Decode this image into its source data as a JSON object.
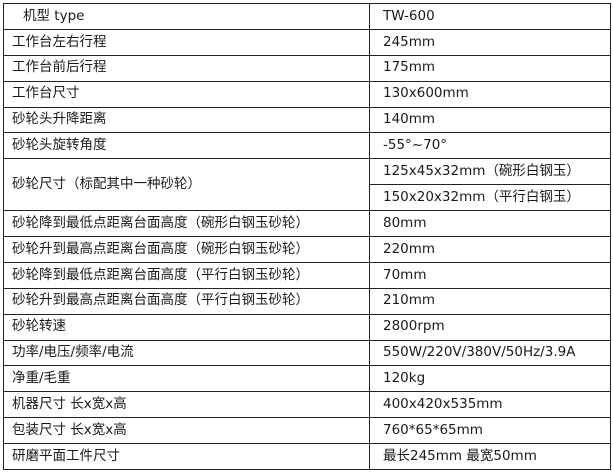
{
  "header": {
    "label": "机型 type",
    "value": "TW-600"
  },
  "rows": [
    {
      "label": "工作台左右行程",
      "value": "245mm"
    },
    {
      "label": "工作台前后行程",
      "value": "175mm"
    },
    {
      "label": "工作台尺寸",
      "value": "130x600mm"
    },
    {
      "label": "砂轮头升降距离",
      "value": "140mm"
    },
    {
      "label": "砂轮头旋转角度",
      "value": "-55°~70°"
    }
  ],
  "wheel_size": {
    "label": "砂轮尺寸（标配其中一种砂轮）",
    "values": [
      "125x45x32mm（碗形白钢玉）",
      "150x20x32mm（平行白钢玉）"
    ]
  },
  "rows2": [
    {
      "label": "砂轮降到最低点距离台面高度（碗形白钢玉砂轮）",
      "value": "80mm"
    },
    {
      "label": "砂轮升到最高点距离台面高度（碗形白钢玉砂轮）",
      "value": "220mm"
    },
    {
      "label": "砂轮降到最低点距离台面高度（平行白钢玉砂轮）",
      "value": "70mm"
    },
    {
      "label": "砂轮升到最高点距离台面高度（平行白钢玉砂轮）",
      "value": "210mm"
    },
    {
      "label": "砂轮转速",
      "value": "2800rpm"
    },
    {
      "label": "功率/电压/频率/电流",
      "value": "550W/220V/380V/50Hz/3.9A"
    },
    {
      "label": "净重/毛重",
      "value": "120kg"
    },
    {
      "label": "机器尺寸 长x宽x高",
      "value": "400x420x535mm"
    },
    {
      "label": "包装尺寸 长x宽x高",
      "value": "760*65*65mm"
    },
    {
      "label": "研磨平面工件尺寸",
      "value": "最长245mm 最宽50mm"
    }
  ]
}
